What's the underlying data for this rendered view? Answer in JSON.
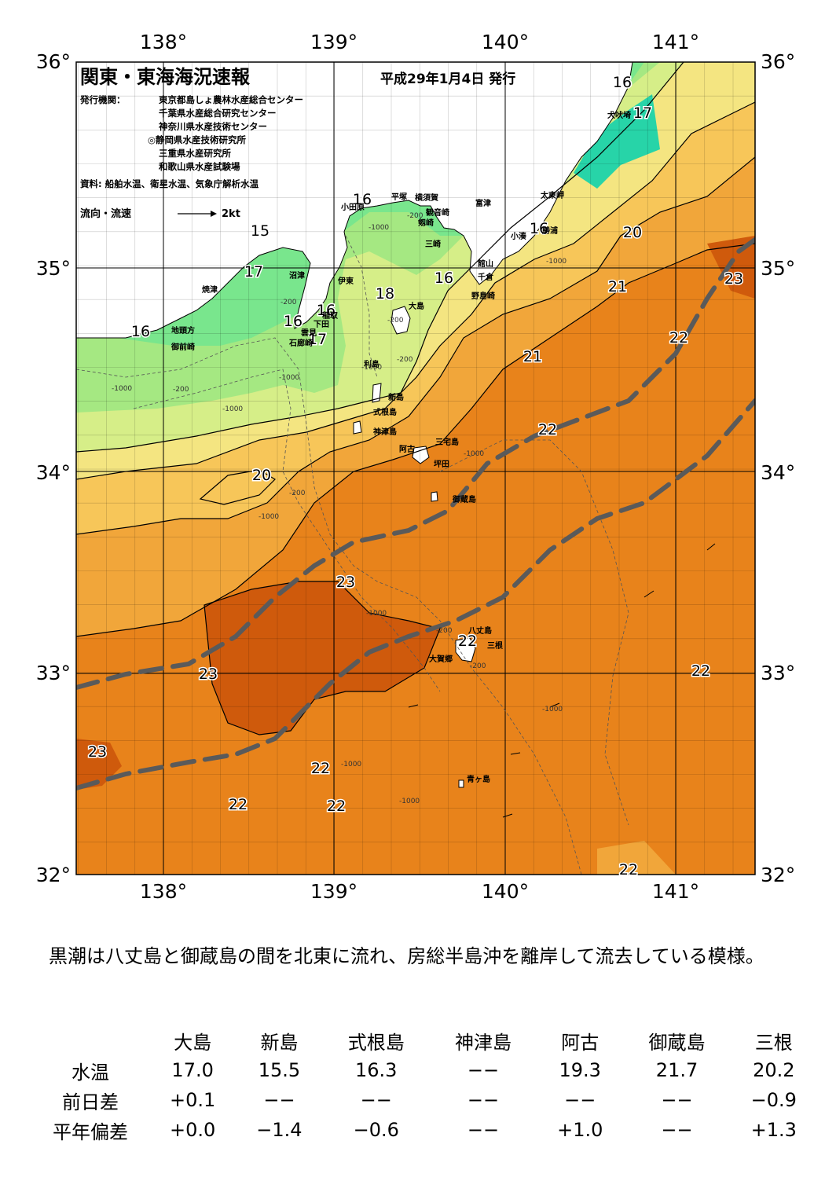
{
  "header": {
    "title": "関東・東海海況速報",
    "date": "平成29年1月4日 発行",
    "issuer_label": "発行機関：",
    "issuers": [
      "東京都島しょ農林水産総合センター",
      "千葉県水産総合研究センター",
      "神奈川県水産技術センター",
      "◎静岡県水産技術研究所",
      "三重県水産研究所",
      "和歌山県水産試験場"
    ],
    "sources": "資料: 船舶水温、衛星水温、気象庁解析水温",
    "legend_label": "流向・流速",
    "legend_scale": "2kt"
  },
  "axes": {
    "lon_labels": [
      "138°",
      "139°",
      "140°",
      "141°"
    ],
    "lat_labels": [
      "36°",
      "35°",
      "34°",
      "33°",
      "32°"
    ]
  },
  "isotherm_labels": [
    "15",
    "16",
    "16",
    "16",
    "16",
    "16",
    "16",
    "16",
    "17",
    "17",
    "17",
    "18",
    "20",
    "20",
    "21",
    "21",
    "22",
    "22",
    "22",
    "22",
    "22",
    "22",
    "22",
    "22",
    "23",
    "23",
    "23",
    "23"
  ],
  "depth_labels": [
    "-200",
    "-1000",
    "-1000",
    "-200",
    "-1000",
    "-200",
    "-200",
    "-1000",
    "-1000",
    "-200",
    "-1000",
    "-200",
    "-1000",
    "-200",
    "-1000",
    "-200",
    "-1000",
    "-1000",
    "-1000",
    "-1000"
  ],
  "places": [
    "犬吠埼",
    "太東岬",
    "勝浦",
    "小湊",
    "富津",
    "館山",
    "千倉",
    "野島崎",
    "横須賀",
    "観音崎",
    "剱崎",
    "三崎",
    "平塚",
    "小田原",
    "伊東",
    "沼津",
    "大島",
    "利島",
    "新島",
    "式根島",
    "神津島",
    "三宅島",
    "阿古",
    "坪田",
    "御蔵島",
    "八丈島",
    "三根",
    "大賀郷",
    "青ヶ島",
    "焼津",
    "地頭方",
    "御前崎",
    "雲見",
    "石廊崎",
    "下田",
    "稲取"
  ],
  "comment": "黒潮は八丈島と御蔵島の間を北東に流れ、房総半島沖を離岸して流去している模様。",
  "table": {
    "columns": [
      "大島",
      "新島",
      "式根島",
      "神津島",
      "阿古",
      "御蔵島",
      "三根"
    ],
    "rows": [
      {
        "label": "水温",
        "values": [
          "17.0",
          "15.5",
          "16.3",
          "−−",
          "19.3",
          "21.7",
          "20.2"
        ]
      },
      {
        "label": "前日差",
        "values": [
          "+0.1",
          "−−",
          "−−",
          "−−",
          "−−",
          "−−",
          "−0.9"
        ]
      },
      {
        "label": "平年偏差",
        "values": [
          "+0.0",
          "−1.4",
          "−0.6",
          "−−",
          "+1.0",
          "−−",
          "+1.3"
        ]
      }
    ]
  },
  "colors": {
    "t15": "#27d4a8",
    "t16": "#79e68d",
    "t17": "#a5e882",
    "t18": "#d6ee88",
    "t19": "#f4e581",
    "t20": "#f7c659",
    "t21": "#f1a63a",
    "t22": "#e8831b",
    "t23": "#cf5a0c",
    "t24": "#c24a06",
    "kuroshio": "#5a5a5a",
    "land": "#ffffff"
  }
}
